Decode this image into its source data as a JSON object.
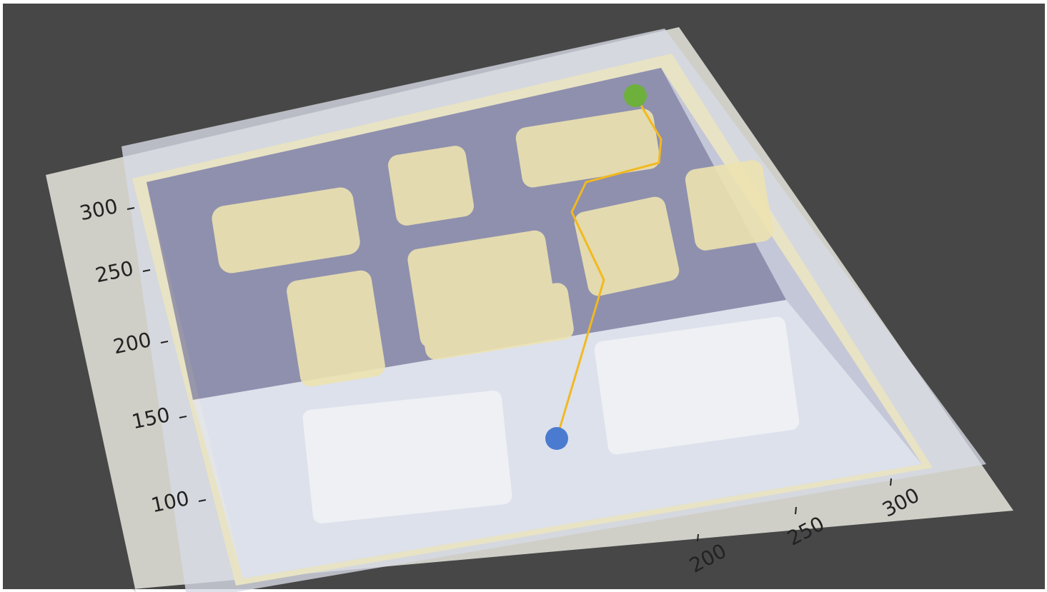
{
  "axes": {
    "y_ticks": [
      300,
      250,
      200,
      150,
      100
    ],
    "x_ticks": [
      200,
      250,
      300
    ]
  }
}
